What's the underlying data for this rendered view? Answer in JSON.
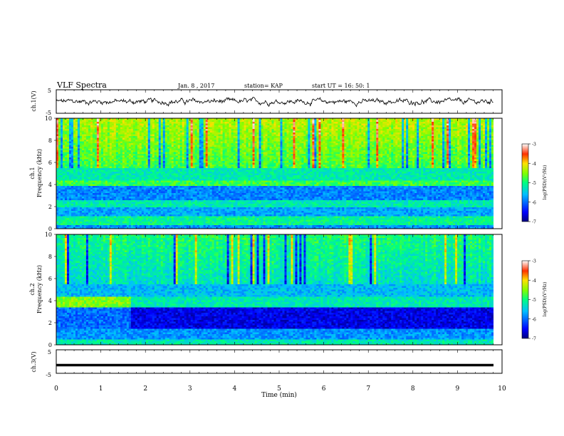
{
  "header": {
    "title": "VLF Spectra",
    "date": "Jan. 8 , 2017",
    "station": "station= KAP",
    "start": "start UT = 16: 50: 1"
  },
  "chart_data": [
    {
      "type": "line",
      "ylabel": "ch.1(V)",
      "ylim": [
        -5,
        5
      ],
      "yticks": [
        "5",
        "-5"
      ],
      "xlim": [
        0,
        10
      ],
      "series": [
        {
          "values_summary": "noisy signal between about -1.5 and 1.5 V for 0 to 9.8 min"
        }
      ]
    },
    {
      "type": "heatmap",
      "ylabel": "ch.1 Frequency (kHz)",
      "ylim": [
        0,
        10
      ],
      "yticks": [
        "0",
        "2",
        "4",
        "6",
        "8",
        "10"
      ],
      "xlim": [
        0,
        10
      ],
      "colorbar": {
        "label": "log(PSD)(V²/Hz)",
        "ticks": [
          "-3",
          "-4",
          "-5",
          "-6",
          "-7"
        ],
        "range": [
          -7,
          -3
        ]
      }
    },
    {
      "type": "heatmap",
      "ylabel": "ch.2 Frequency (kHz)",
      "ylim": [
        0,
        10
      ],
      "yticks": [
        "0",
        "2",
        "4",
        "6",
        "8",
        "10"
      ],
      "xlim": [
        0,
        10
      ],
      "colorbar": {
        "label": "log(PSD)(V²/Hz)",
        "ticks": [
          "-3",
          "-4",
          "-5",
          "-6",
          "-7"
        ],
        "range": [
          -7,
          -3
        ]
      }
    },
    {
      "type": "line",
      "ylabel": "ch.3(V)",
      "ylim": [
        -5,
        5
      ],
      "yticks": [
        "5",
        "-5"
      ],
      "xlim": [
        0,
        10
      ],
      "series": [
        {
          "values_summary": "flat at about -1.5 V"
        }
      ]
    }
  ],
  "xaxis": {
    "label": "Time (min)",
    "ticks": [
      "0",
      "1",
      "2",
      "3",
      "4",
      "5",
      "6",
      "7",
      "8",
      "9",
      "10"
    ]
  }
}
